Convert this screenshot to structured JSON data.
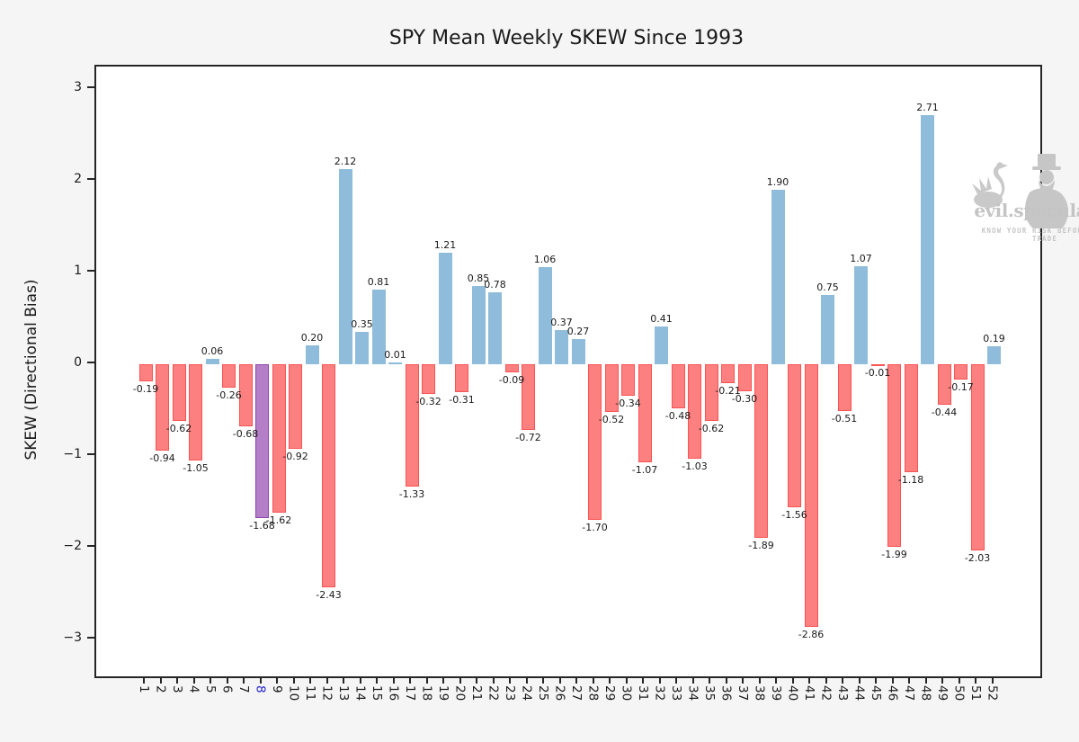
{
  "figure": {
    "title": "SPY Mean Weekly SKEW Since 1993",
    "ylabel": "SKEW (Directional Bias)"
  },
  "watermark": {
    "brand": "evil.speculator",
    "tagline": "KNOW YOUR RISK BEFORE YOU TRADE"
  },
  "chart_data": {
    "type": "bar",
    "title": "SPY Mean Weekly SKEW Since 1993",
    "xlabel": "",
    "ylabel": "SKEW (Directional Bias)",
    "categories": [
      "1",
      "2",
      "3",
      "4",
      "5",
      "6",
      "7",
      "8",
      "9",
      "10",
      "11",
      "12",
      "13",
      "14",
      "15",
      "16",
      "17",
      "18",
      "19",
      "20",
      "21",
      "22",
      "23",
      "24",
      "25",
      "26",
      "27",
      "28",
      "29",
      "30",
      "31",
      "32",
      "33",
      "34",
      "35",
      "36",
      "37",
      "38",
      "39",
      "40",
      "41",
      "42",
      "43",
      "44",
      "45",
      "46",
      "47",
      "48",
      "49",
      "50",
      "51",
      "52"
    ],
    "values": [
      -0.19,
      -0.94,
      -0.62,
      -1.05,
      0.06,
      -0.26,
      -0.68,
      -1.68,
      -1.62,
      -0.92,
      0.2,
      -2.43,
      2.12,
      0.35,
      0.81,
      0.01,
      -1.33,
      -0.32,
      1.21,
      -0.31,
      0.85,
      0.78,
      -0.09,
      -0.72,
      1.06,
      0.37,
      0.27,
      -1.7,
      -0.52,
      -0.34,
      -1.07,
      0.41,
      -0.48,
      -1.03,
      -0.62,
      -0.21,
      -0.3,
      -1.89,
      1.9,
      -1.56,
      -2.86,
      0.75,
      -0.51,
      1.07,
      -0.01,
      -1.99,
      -1.18,
      2.71,
      -0.44,
      -0.17,
      -2.03,
      0.19
    ],
    "highlight_category": "8",
    "highlight_index": 7,
    "yticks": [
      3,
      2,
      1,
      0,
      -1,
      -2,
      -3
    ],
    "ylim": [
      -3.4,
      3.24
    ],
    "grid": false,
    "legend": null,
    "value_labels_shown": true,
    "colors": {
      "positive_fill": "#8fbcda",
      "negative_fill": "#fd8080",
      "negative_edge": "#fb5252",
      "highlight_fill": "#b47fc6",
      "highlight_edge": "#8e44ad",
      "highlight_tick_label": "#2323cf",
      "figure_background": "#f5f5f5",
      "plot_background": "#ffffff",
      "spine": "#262626"
    }
  }
}
